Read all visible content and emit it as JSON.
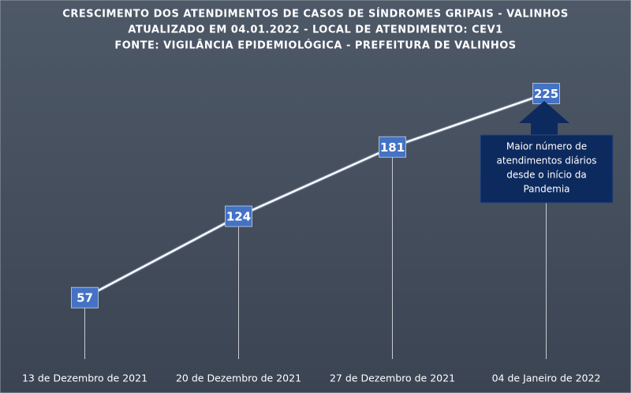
{
  "chart_data": {
    "type": "line",
    "title": [
      "CRESCIMENTO  DOS ATENDIMENTOS  DE CASOS DE SÍNDROMES GRIPAIS  - VALINHOS",
      "ATUALIZADO EM 04.01.2022 - LOCAL DE ATENDIMENTO:  CEV1",
      "FONTE:  VIGILÂNCIA  EPIDEMIOLÓGICA  - PREFEITURA  DE VALINHOS"
    ],
    "categories": [
      "13 de Dezembro de 2021",
      "20 de Dezembro de 2021",
      "27 de Dezembro de 2021",
      "04 de Janeiro de 2022"
    ],
    "values": [
      57,
      124,
      181,
      225
    ],
    "color": "#ffffff",
    "label_color": "#4472c4",
    "ylim": [
      0,
      250
    ],
    "annotation": [
      "Maior número de",
      "atendimentos diários",
      "desde o início da",
      "Pandemia"
    ]
  }
}
